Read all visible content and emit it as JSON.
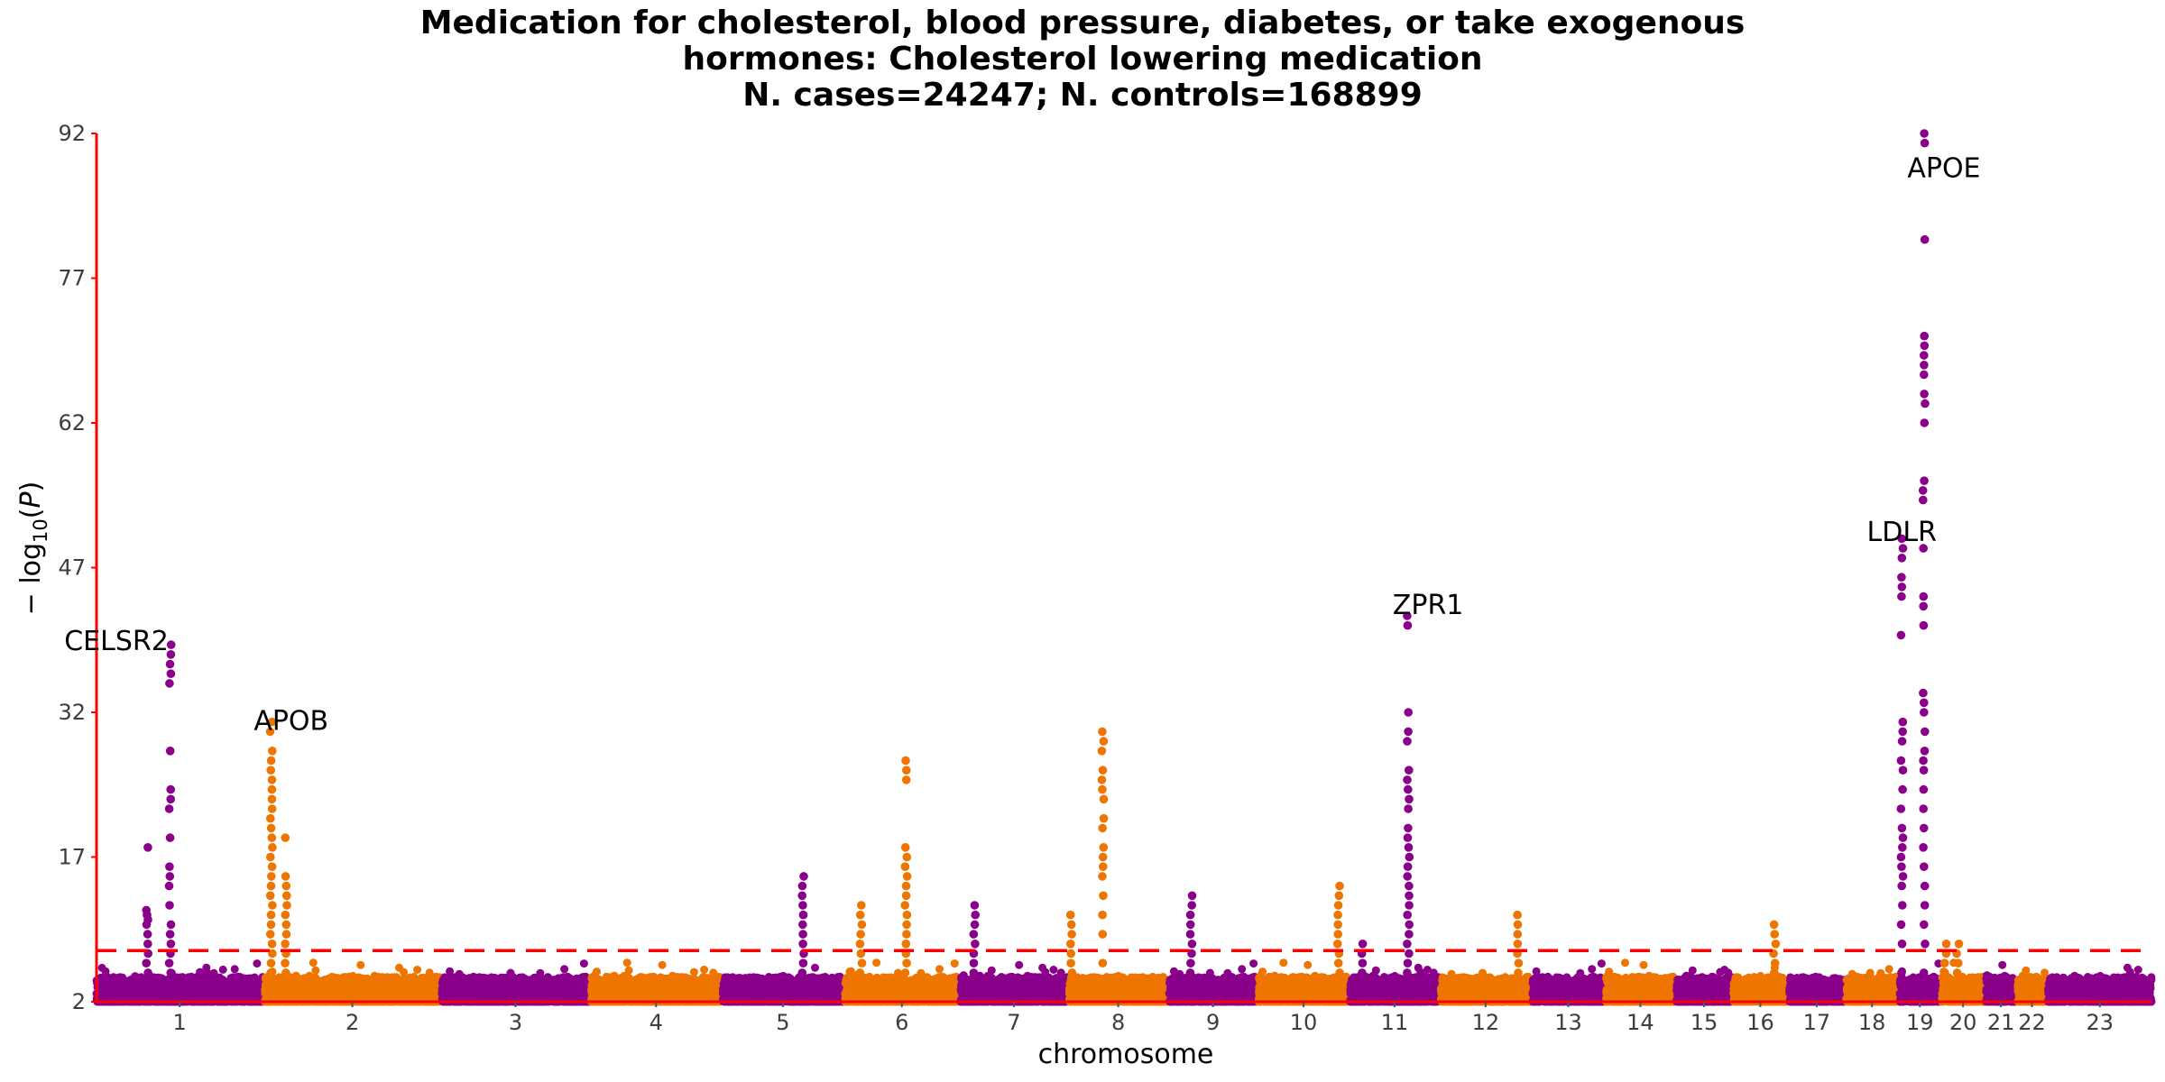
{
  "chart_data": {
    "type": "scatter",
    "subtype": "manhattan",
    "title_lines": [
      "Medication for cholesterol, blood pressure, diabetes, or take exogenous",
      "hormones: Cholesterol lowering medication",
      "N. cases=24247; N. controls=168899"
    ],
    "xlabel": "chromosome",
    "ylabel": "-log10(P)",
    "ylim": [
      2,
      92
    ],
    "yticks": [
      2,
      17,
      32,
      47,
      62,
      77,
      92
    ],
    "significance_line": 7.3,
    "colors": {
      "odd": "#8b008b",
      "even": "#ee7600",
      "threshold": "#ff0000",
      "axis": "#ff0000"
    },
    "chromosomes": [
      {
        "label": "1",
        "span": [
          0.0,
          79.0
        ]
      },
      {
        "label": "2",
        "span": [
          80.0,
          163.0
        ]
      },
      {
        "label": "3",
        "span": [
          164.0,
          234.0
        ]
      },
      {
        "label": "4",
        "span": [
          235.0,
          296.5
        ]
      },
      {
        "label": "5",
        "span": [
          297.5,
          354.5
        ]
      },
      {
        "label": "6",
        "span": [
          355.5,
          409.5
        ]
      },
      {
        "label": "7",
        "span": [
          410.5,
          461.0
        ]
      },
      {
        "label": "8",
        "span": [
          462.0,
          508.5
        ]
      },
      {
        "label": "9",
        "span": [
          509.5,
          551.0
        ]
      },
      {
        "label": "10",
        "span": [
          552.0,
          594.5
        ]
      },
      {
        "label": "11",
        "span": [
          595.5,
          637.5
        ]
      },
      {
        "label": "12",
        "span": [
          638.5,
          681.0
        ]
      },
      {
        "label": "13",
        "span": [
          682.0,
          716.0
        ]
      },
      {
        "label": "14",
        "span": [
          717.0,
          749.5
        ]
      },
      {
        "label": "15",
        "span": [
          750.5,
          776.5
        ]
      },
      {
        "label": "16",
        "span": [
          777.5,
          803.0
        ]
      },
      {
        "label": "17",
        "span": [
          804.0,
          830.0
        ]
      },
      {
        "label": "18",
        "span": [
          831.0,
          855.5
        ]
      },
      {
        "label": "19",
        "span": [
          856.5,
          875.5
        ]
      },
      {
        "label": "20",
        "span": [
          876.5,
          896.5
        ]
      },
      {
        "label": "21",
        "span": [
          897.5,
          911.5
        ]
      },
      {
        "label": "22",
        "span": [
          912.5,
          926.0
        ]
      },
      {
        "label": "23",
        "span": [
          927.0,
          976.0
        ]
      }
    ],
    "peaks": [
      {
        "chr": "1",
        "x": 24,
        "y": [
          5,
          6,
          7,
          8,
          9,
          10,
          10.5,
          11,
          11.5,
          18
        ]
      },
      {
        "chr": "1",
        "x": 35,
        "y": [
          5,
          6,
          7,
          8,
          9,
          10,
          12,
          14,
          15,
          16,
          19,
          22,
          23,
          24,
          28,
          35,
          36,
          37,
          38,
          39
        ]
      },
      {
        "chr": "2",
        "x": 83,
        "y": [
          4,
          5,
          6,
          7,
          8,
          9,
          10,
          11,
          12,
          13,
          14,
          15,
          16,
          17,
          18,
          19,
          20,
          21,
          22,
          23,
          24,
          25,
          26,
          27,
          28,
          30,
          31
        ]
      },
      {
        "chr": "2",
        "x": 90,
        "y": [
          5,
          6,
          7,
          8,
          9,
          10,
          11,
          12,
          13,
          14,
          15,
          19
        ]
      },
      {
        "chr": "5",
        "x": 335.5,
        "y": [
          5,
          6,
          7,
          8,
          9,
          10,
          11,
          12,
          13,
          14,
          15
        ]
      },
      {
        "chr": "6",
        "x": 363,
        "y": [
          5,
          6,
          7,
          8,
          9,
          10,
          11,
          12
        ]
      },
      {
        "chr": "6",
        "x": 384.5,
        "y": [
          5,
          6,
          7,
          8,
          9,
          10,
          11,
          12,
          13,
          14,
          15,
          16,
          17,
          18,
          25,
          26,
          27
        ]
      },
      {
        "chr": "7",
        "x": 417,
        "y": [
          5,
          6,
          7,
          8,
          9,
          10,
          11,
          12
        ]
      },
      {
        "chr": "8",
        "x": 463,
        "y": [
          5,
          6,
          7,
          8,
          9,
          10,
          11
        ]
      },
      {
        "chr": "8",
        "x": 478,
        "y": [
          6,
          9,
          11,
          13,
          15,
          16,
          17,
          18,
          20,
          21,
          23,
          24,
          25,
          26,
          28,
          29,
          30
        ]
      },
      {
        "chr": "9",
        "x": 520,
        "y": [
          5,
          6,
          7,
          8,
          9,
          10,
          11,
          12,
          13
        ]
      },
      {
        "chr": "10",
        "x": 590,
        "y": [
          5,
          6,
          7,
          8,
          9,
          10,
          11,
          12,
          13,
          14
        ]
      },
      {
        "chr": "11",
        "x": 601,
        "y": [
          5,
          6,
          7,
          8
        ]
      },
      {
        "chr": "11",
        "x": 623,
        "y": [
          5,
          6,
          7,
          8,
          9,
          10,
          11,
          12,
          13,
          14,
          15,
          16,
          17,
          18,
          19,
          20,
          22,
          23,
          24,
          25,
          26,
          29,
          30,
          32,
          41,
          42
        ]
      },
      {
        "chr": "12",
        "x": 675,
        "y": [
          5,
          6,
          7,
          8,
          9,
          10,
          11
        ]
      },
      {
        "chr": "16",
        "x": 797,
        "y": [
          5,
          6,
          7,
          8,
          9,
          10
        ]
      },
      {
        "chr": "19",
        "x": 857.5,
        "y": [
          5,
          8,
          10,
          12,
          14,
          15,
          16,
          17,
          18,
          19,
          20,
          22,
          24,
          26,
          27,
          29,
          30,
          31,
          40,
          44,
          45,
          46,
          48,
          49,
          50
        ]
      },
      {
        "chr": "19",
        "x": 868,
        "y": [
          5,
          8,
          10,
          12,
          14,
          16,
          18,
          20,
          22,
          24,
          26,
          27,
          28,
          30,
          32,
          33,
          34,
          41,
          43,
          44,
          49,
          54,
          55,
          56,
          62,
          64,
          65,
          67,
          68,
          69,
          70,
          71,
          81,
          91,
          92
        ]
      },
      {
        "chr": "20",
        "x": 878,
        "y": [
          5,
          6,
          7,
          8
        ]
      },
      {
        "chr": "20",
        "x": 884,
        "y": [
          5,
          6,
          7,
          8
        ]
      }
    ],
    "annotations": [
      {
        "label": "CELSR2",
        "x": 0,
        "y": 39.5
      },
      {
        "label": "APOB",
        "x": 83,
        "y": 31.2
      },
      {
        "label": "ZPR1",
        "x": 623,
        "y": 43.2
      },
      {
        "label": "LDLR",
        "x": 848,
        "y": 50.8
      },
      {
        "label": "APOE",
        "x": 868,
        "y": 88.5
      }
    ]
  }
}
